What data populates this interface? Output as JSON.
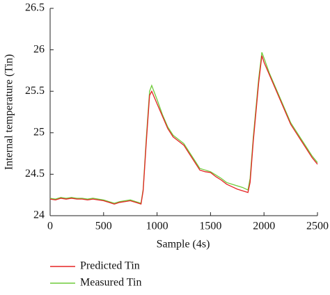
{
  "chart_data": {
    "type": "line",
    "xlabel": "Sample (4s)",
    "ylabel": "Internal temperature (Tin)",
    "x": [
      0,
      50,
      100,
      150,
      200,
      250,
      300,
      350,
      400,
      450,
      500,
      550,
      600,
      650,
      700,
      750,
      800,
      850,
      870,
      900,
      930,
      950,
      1000,
      1050,
      1100,
      1150,
      1200,
      1250,
      1300,
      1350,
      1400,
      1450,
      1500,
      1550,
      1600,
      1650,
      1700,
      1750,
      1800,
      1850,
      1870,
      1900,
      1950,
      1980,
      2000,
      2050,
      2100,
      2150,
      2200,
      2250,
      2300,
      2350,
      2400,
      2450,
      2500
    ],
    "series": [
      {
        "name": "Predicted Tin",
        "color": "#e52323",
        "values": [
          24.2,
          24.19,
          24.21,
          24.2,
          24.21,
          24.2,
          24.2,
          24.19,
          24.2,
          24.19,
          24.18,
          24.16,
          24.14,
          24.16,
          24.17,
          24.18,
          24.16,
          24.14,
          24.3,
          24.9,
          25.45,
          25.5,
          25.35,
          25.2,
          25.05,
          24.95,
          24.9,
          24.85,
          24.75,
          24.65,
          24.55,
          24.53,
          24.52,
          24.47,
          24.43,
          24.38,
          24.35,
          24.32,
          24.3,
          24.28,
          24.4,
          24.9,
          25.6,
          25.93,
          25.85,
          25.7,
          25.55,
          25.4,
          25.25,
          25.1,
          25.0,
          24.9,
          24.8,
          24.7,
          24.62
        ]
      },
      {
        "name": "Measured Tin",
        "color": "#6fcb3a",
        "values": [
          24.21,
          24.2,
          24.22,
          24.21,
          24.22,
          24.21,
          24.21,
          24.2,
          24.21,
          24.2,
          24.19,
          24.17,
          24.15,
          24.17,
          24.18,
          24.19,
          24.17,
          24.15,
          24.32,
          24.95,
          25.5,
          25.57,
          25.4,
          25.22,
          25.07,
          24.97,
          24.92,
          24.87,
          24.77,
          24.67,
          24.57,
          24.55,
          24.53,
          24.49,
          24.45,
          24.4,
          24.38,
          24.36,
          24.34,
          24.31,
          24.45,
          24.95,
          25.65,
          25.97,
          25.9,
          25.72,
          25.57,
          25.42,
          25.27,
          25.12,
          25.02,
          24.92,
          24.82,
          24.72,
          24.64
        ]
      }
    ],
    "xlim": [
      0,
      2500
    ],
    "xticks": [
      0,
      500,
      1000,
      1500,
      2000,
      2500
    ],
    "ylim": [
      24,
      26.5
    ],
    "yticks": [
      24,
      24.5,
      25,
      25.5,
      26,
      26.5
    ],
    "grid": false
  }
}
